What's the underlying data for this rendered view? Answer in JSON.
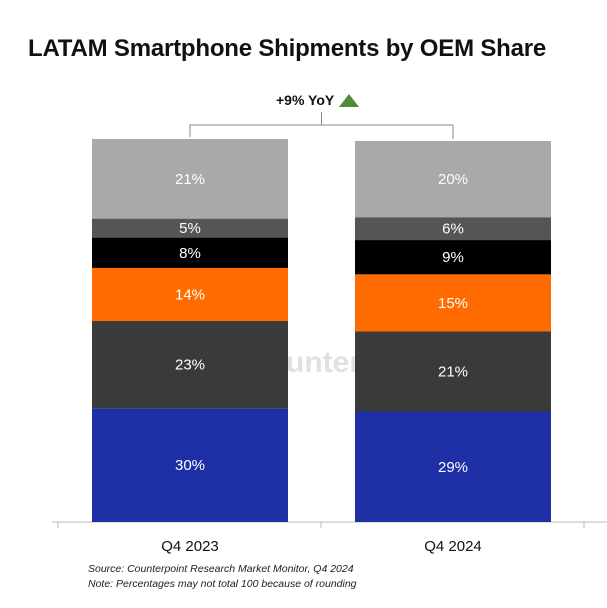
{
  "chart_data": {
    "type": "bar",
    "stacked": true,
    "title": "LATAM Smartphone Shipments by OEM Share",
    "annotation": "+9% YoY",
    "categories": [
      "Q4 2023",
      "Q4 2024"
    ],
    "series": [
      {
        "values": [
          30,
          29
        ],
        "color": "#1f2fa5"
      },
      {
        "values": [
          23,
          21
        ],
        "color": "#3a3a3a"
      },
      {
        "values": [
          14,
          15
        ],
        "color": "#ff6b00"
      },
      {
        "values": [
          8,
          9
        ],
        "color": "#000000"
      },
      {
        "values": [
          5,
          6
        ],
        "color": "#555555"
      },
      {
        "values": [
          21,
          20
        ],
        "color": "#a9a9a9"
      }
    ],
    "labels": [
      [
        "30%",
        "23%",
        "14%",
        "8%",
        "5%",
        "21%"
      ],
      [
        "29%",
        "21%",
        "15%",
        "9%",
        "6%",
        "20%"
      ]
    ],
    "ylim": [
      0,
      100
    ]
  },
  "footer": {
    "source": "Source: Counterpoint Research Market Monitor, Q4 2024",
    "note": "Note: Percentages may not total 100 because of rounding"
  },
  "watermark": "Counterpoint"
}
